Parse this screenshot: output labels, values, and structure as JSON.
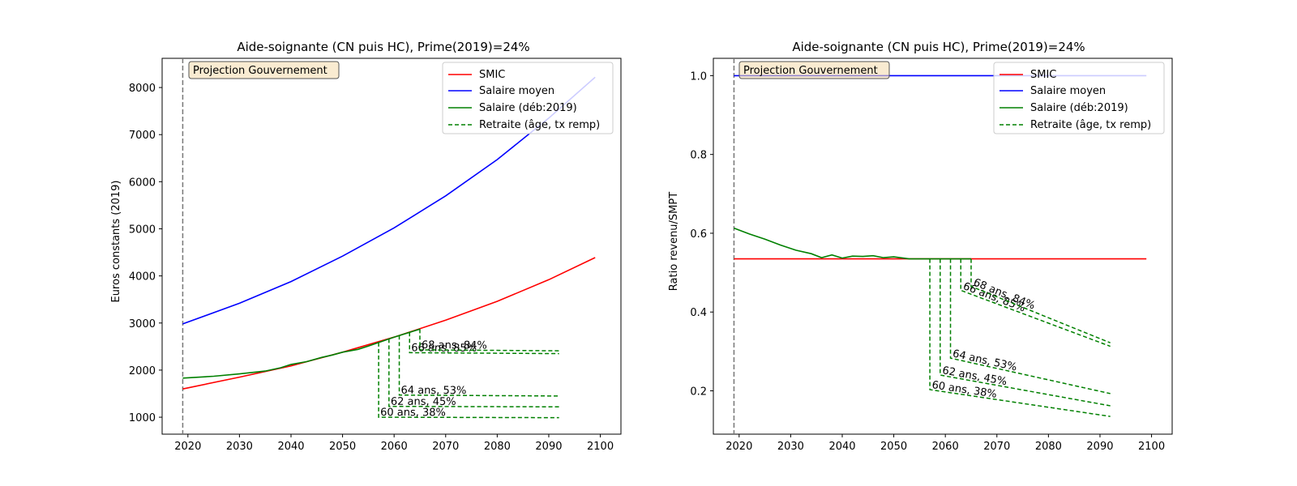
{
  "chart_data": [
    {
      "type": "line",
      "title": "Aide-soignante (CN puis HC), Prime(2019)=24%",
      "ylabel": "Euros constants (2019)",
      "xlabel": "",
      "xlim": [
        2015,
        2104
      ],
      "ylim": [
        640,
        8620
      ],
      "xticks": [
        2020,
        2030,
        2040,
        2050,
        2060,
        2070,
        2080,
        2090,
        2100
      ],
      "yticks": [
        1000,
        2000,
        3000,
        4000,
        5000,
        6000,
        7000,
        8000
      ],
      "vline": 2019,
      "projection_label": "Projection Gouvernement",
      "legend_position": "upper right",
      "legend": [
        "SMIC",
        "Salaire moyen",
        "Salaire (déb:2019)",
        "Retraite (âge, tx remp)"
      ],
      "colors": {
        "smic": "#ff0000",
        "salaire_moyen": "#0000ff",
        "salaire": "#008000",
        "retraite": "#008000",
        "vline": "#777777"
      },
      "series": [
        {
          "name": "SMIC",
          "x": [
            2019,
            2030,
            2040,
            2050,
            2060,
            2070,
            2080,
            2090,
            2099
          ],
          "y": [
            1600,
            1850,
            2090,
            2380,
            2700,
            3060,
            3460,
            3920,
            4390
          ]
        },
        {
          "name": "Salaire moyen",
          "x": [
            2019,
            2030,
            2040,
            2050,
            2060,
            2070,
            2080,
            2090,
            2099
          ],
          "y": [
            2980,
            3420,
            3880,
            4420,
            5020,
            5700,
            6470,
            7350,
            8220
          ]
        },
        {
          "name": "Salaire (déb:2019)",
          "x": [
            2019,
            2025,
            2030,
            2035,
            2038,
            2040,
            2043,
            2046,
            2048,
            2050,
            2053,
            2055,
            2060,
            2065
          ],
          "y": [
            1830,
            1870,
            1920,
            1980,
            2050,
            2120,
            2180,
            2270,
            2320,
            2380,
            2440,
            2510,
            2700,
            2870
          ]
        }
      ],
      "retraite": [
        {
          "label": "60 ans, 38%",
          "age": 60,
          "start": 2057,
          "end": 2092,
          "y_start": 1000,
          "y_end": 990
        },
        {
          "label": "62 ans, 45%",
          "age": 62,
          "start": 2059,
          "end": 2092,
          "y_start": 1230,
          "y_end": 1220
        },
        {
          "label": "64 ans, 53%",
          "age": 64,
          "start": 2061,
          "end": 2092,
          "y_start": 1470,
          "y_end": 1450
        },
        {
          "label": "66 ans, 85%",
          "age": 66,
          "start": 2063,
          "end": 2092,
          "y_start": 2370,
          "y_end": 2350
        },
        {
          "label": "68 ans, 84%",
          "age": 68,
          "start": 2065,
          "end": 2092,
          "y_start": 2430,
          "y_end": 2410
        }
      ],
      "annotation_offsets": {
        "60": [
          2,
          -12
        ],
        "62": [
          2,
          -12
        ],
        "64": [
          2,
          -12
        ],
        "66": [
          2,
          -12
        ],
        "68": [
          2,
          -12
        ]
      }
    },
    {
      "type": "line",
      "title": "Aide-soignante (CN puis HC), Prime(2019)=24%",
      "ylabel": "Ratio revenu/SMPT",
      "xlabel": "",
      "xlim": [
        2015,
        2104
      ],
      "ylim": [
        0.09,
        1.044
      ],
      "xticks": [
        2020,
        2030,
        2040,
        2050,
        2060,
        2070,
        2080,
        2090,
        2100
      ],
      "yticks": [
        0.2,
        0.4,
        0.6,
        0.8,
        1.0
      ],
      "vline": 2019,
      "projection_label": "Projection Gouvernement",
      "legend_position": "upper right",
      "legend": [
        "SMIC",
        "Salaire moyen",
        "Salaire (déb:2019)",
        "Retraite (âge, tx remp)"
      ],
      "colors": {
        "smic": "#ff0000",
        "salaire_moyen": "#0000ff",
        "salaire": "#008000",
        "retraite": "#008000",
        "vline": "#777777"
      },
      "series": [
        {
          "name": "SMIC",
          "x": [
            2019,
            2099
          ],
          "y": [
            0.535,
            0.535
          ]
        },
        {
          "name": "Salaire moyen",
          "x": [
            2019,
            2099
          ],
          "y": [
            1.0,
            1.0
          ]
        },
        {
          "name": "Salaire (déb:2019)",
          "x": [
            2019,
            2022,
            2025,
            2028,
            2031,
            2034,
            2036,
            2038,
            2040,
            2042,
            2044,
            2046,
            2048,
            2050,
            2053,
            2065
          ],
          "y": [
            0.613,
            0.598,
            0.585,
            0.57,
            0.557,
            0.548,
            0.538,
            0.545,
            0.537,
            0.542,
            0.541,
            0.543,
            0.538,
            0.54,
            0.535,
            0.535
          ]
        }
      ],
      "retraite": [
        {
          "label": "60 ans, 38%",
          "age": 60,
          "start": 2057,
          "end": 2092,
          "y_start": 0.203,
          "y_end": 0.135
        },
        {
          "label": "62 ans, 45%",
          "age": 62,
          "start": 2059,
          "end": 2092,
          "y_start": 0.24,
          "y_end": 0.162
        },
        {
          "label": "64 ans, 53%",
          "age": 64,
          "start": 2061,
          "end": 2092,
          "y_start": 0.283,
          "y_end": 0.193
        },
        {
          "label": "66 ans, 85%",
          "age": 66,
          "start": 2063,
          "end": 2092,
          "y_start": 0.455,
          "y_end": 0.313
        },
        {
          "label": "68 ans, 84%",
          "age": 68,
          "start": 2065,
          "end": 2092,
          "y_start": 0.465,
          "y_end": 0.322
        }
      ],
      "annotation_offsets": {
        "60": [
          2,
          -12
        ],
        "62": [
          2,
          -12
        ],
        "64": [
          2,
          -12
        ],
        "66": [
          2,
          -12
        ],
        "68": [
          2,
          -12
        ]
      }
    }
  ]
}
